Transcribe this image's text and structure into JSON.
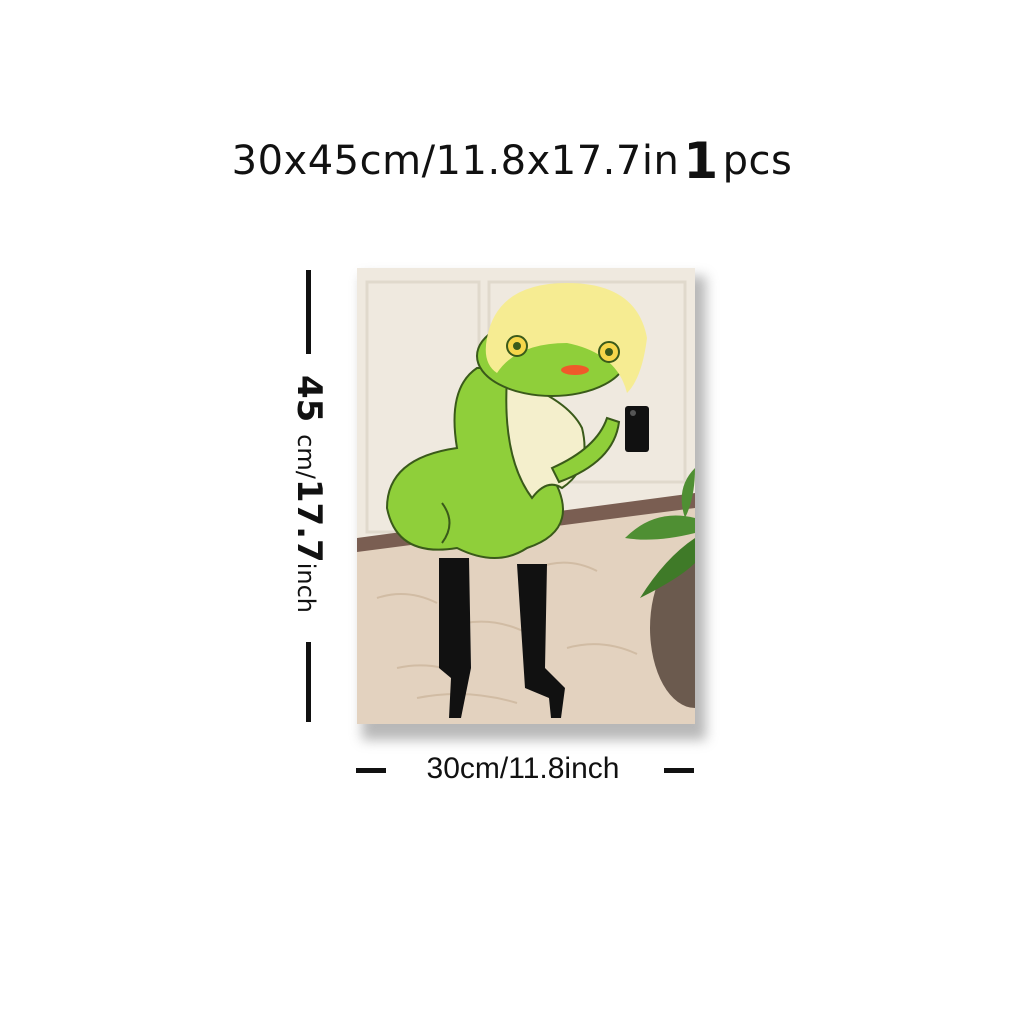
{
  "product": {
    "size_prefix": "30x45cm/11.8x17.7in",
    "quantity_number": "1",
    "quantity_unit": "pcs"
  },
  "dimensions": {
    "height_number": "45",
    "height_unit": "cm/",
    "height_inch_number": "17.7",
    "height_inch_unit": "inch",
    "width_text": "30cm/11.8inch"
  },
  "artwork": {
    "subject": "frog-wearing-blonde-wig-taking-mirror-selfie-in-high-heels",
    "colors": {
      "frog": "#8fcf3a",
      "wig": "#f6ec92",
      "belly": "#f4efcc",
      "boots": "#111111",
      "rug": "#e3d2bf",
      "wall": "#efe9df",
      "plant": "#4f8f33"
    }
  }
}
